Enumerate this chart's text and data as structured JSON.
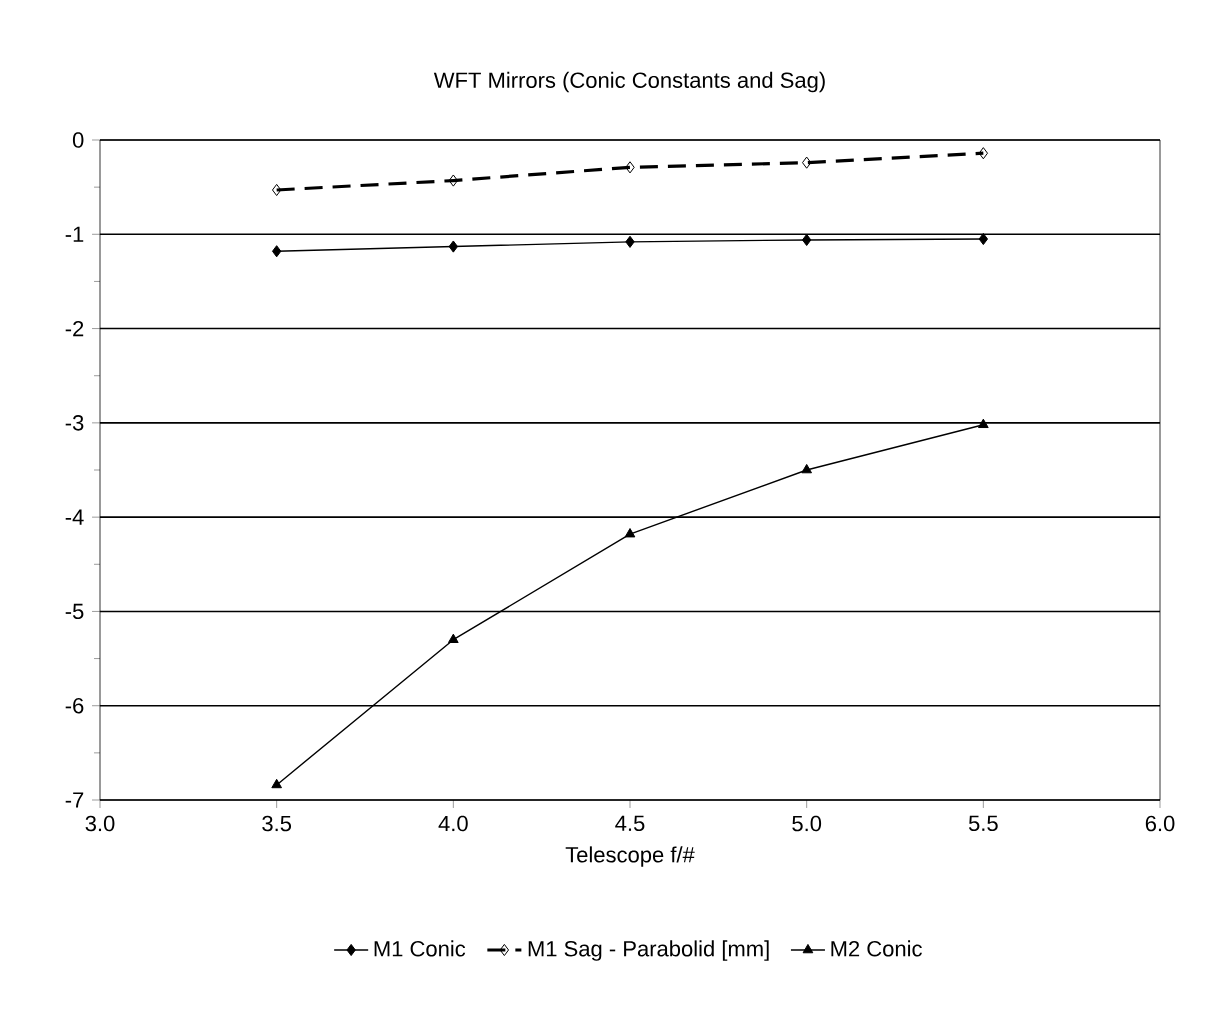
{
  "chart_data": {
    "type": "line",
    "title": "WFT Mirrors (Conic Constants and Sag)",
    "xlabel": "Telescope f/#",
    "x": [
      3.5,
      4.0,
      4.5,
      5.0,
      5.5
    ],
    "series": [
      {
        "name": "M1 Conic",
        "color": "#000000",
        "marker": "diamond",
        "line_style": "solid",
        "values": [
          -1.18,
          -1.13,
          -1.08,
          -1.06,
          -1.05
        ]
      },
      {
        "name": "M1 Sag - Parabolid [mm]",
        "color": "#000000",
        "marker": "diamond",
        "line_style": "dashed",
        "values": [
          -0.53,
          -0.43,
          -0.29,
          -0.24,
          -0.14
        ]
      },
      {
        "name": "M2 Conic",
        "color": "#000000",
        "marker": "triangle",
        "line_style": "solid",
        "values": [
          -6.84,
          -5.3,
          -4.18,
          -3.5,
          -3.02
        ]
      }
    ],
    "xlim": [
      3.0,
      6.0
    ],
    "xticks": [
      {
        "value": 3.0,
        "label": "3.0"
      },
      {
        "value": 3.5,
        "label": "3.5"
      },
      {
        "value": 4.0,
        "label": "4.0"
      },
      {
        "value": 4.5,
        "label": "4.5"
      },
      {
        "value": 5.0,
        "label": "5.0"
      },
      {
        "value": 5.5,
        "label": "5.5"
      },
      {
        "value": 6.0,
        "label": "6.0"
      }
    ],
    "ylim": [
      -7,
      0
    ],
    "yticks": [
      -7,
      -6,
      -5,
      -4,
      -3,
      -2,
      -1,
      0
    ],
    "grid": "y",
    "legend": "bottom"
  }
}
